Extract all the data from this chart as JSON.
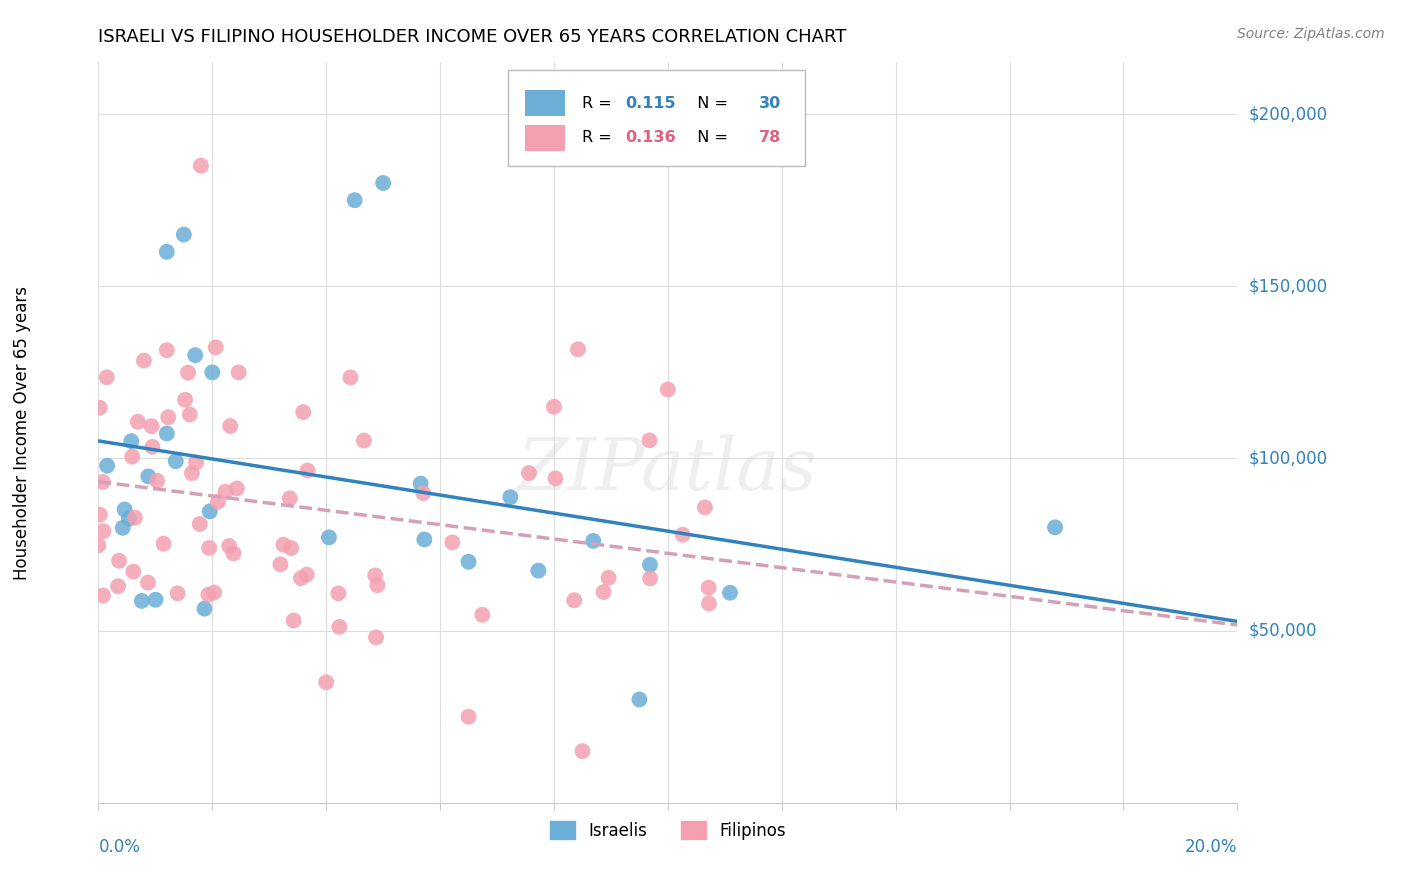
{
  "title": "ISRAELI VS FILIPINO HOUSEHOLDER INCOME OVER 65 YEARS CORRELATION CHART",
  "source": "Source: ZipAtlas.com",
  "ylabel": "Householder Income Over 65 years",
  "watermark": "ZIPatlas",
  "israeli_color": "#6baed6",
  "filipino_color": "#f4a0b0",
  "israeli_line_color": "#3182bd",
  "filipino_line_color": "#d4a0b8",
  "xlim": [
    0.0,
    0.2
  ],
  "ylim": [
    0,
    215000
  ],
  "r_israeli": "0.115",
  "n_israeli": "30",
  "r_filipino": "0.136",
  "n_filipino": "78",
  "legend_israeli": "Israelis",
  "legend_filipino": "Filipinos"
}
